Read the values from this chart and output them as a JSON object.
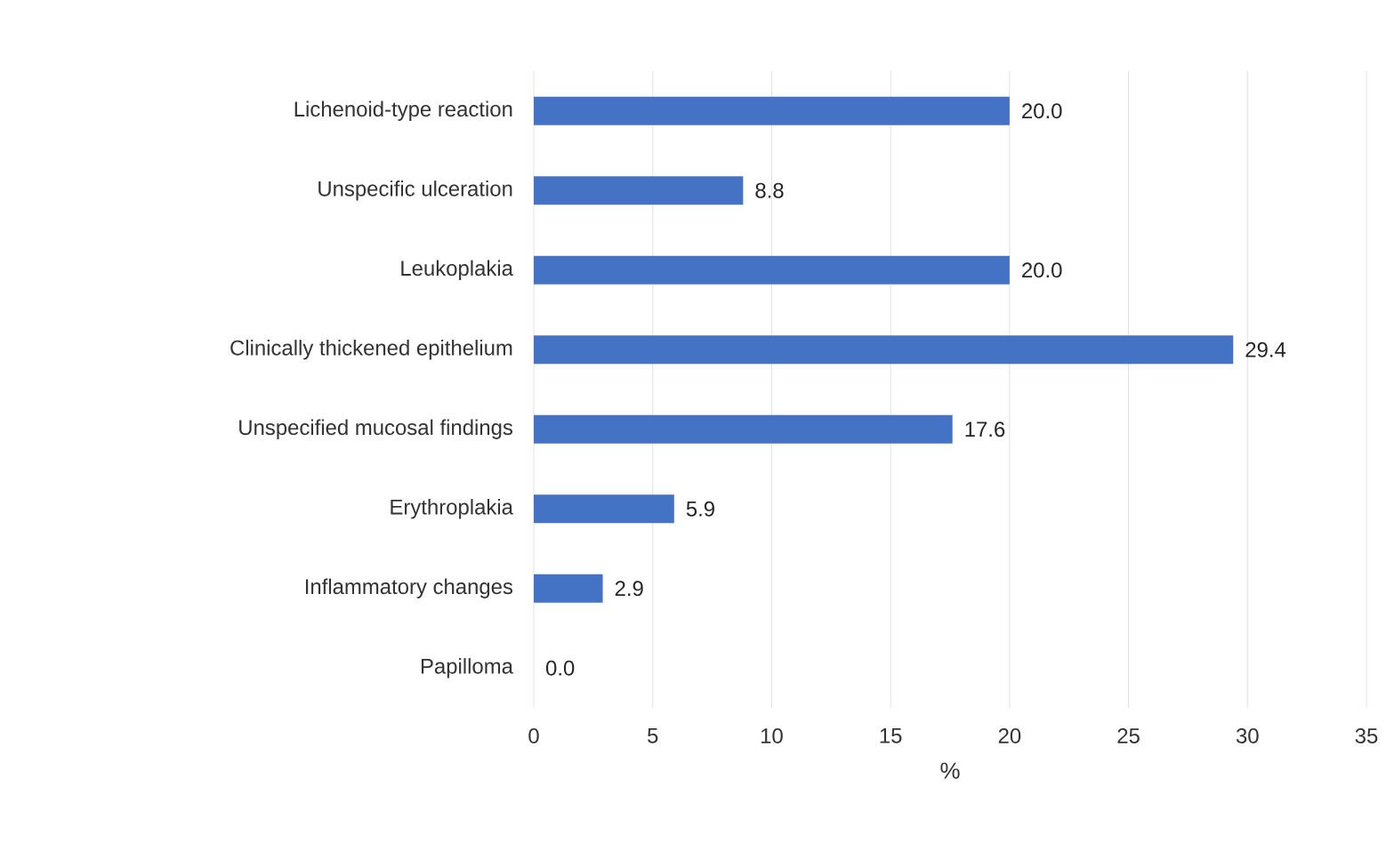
{
  "chart_data": {
    "type": "bar",
    "orientation": "horizontal",
    "categories": [
      "Lichenoid-type reaction",
      "Unspecific ulceration",
      "Leukoplakia",
      "Clinically thickened epithelium",
      "Unspecified mucosal findings",
      "Erythroplakia",
      "Inflammatory changes",
      "Papilloma"
    ],
    "values": [
      20.0,
      8.8,
      20.0,
      29.4,
      17.6,
      5.9,
      2.9,
      0.0
    ],
    "color": "#4472c4",
    "xlabel": "%",
    "xlim": [
      0,
      35
    ],
    "xticks": [
      0,
      5,
      10,
      15,
      20,
      25,
      30,
      35
    ],
    "value_labels": [
      "20.0",
      "8.8",
      "20.0",
      "29.4",
      "17.6",
      "5.9",
      "2.9",
      "0.0"
    ],
    "grid": "x"
  }
}
